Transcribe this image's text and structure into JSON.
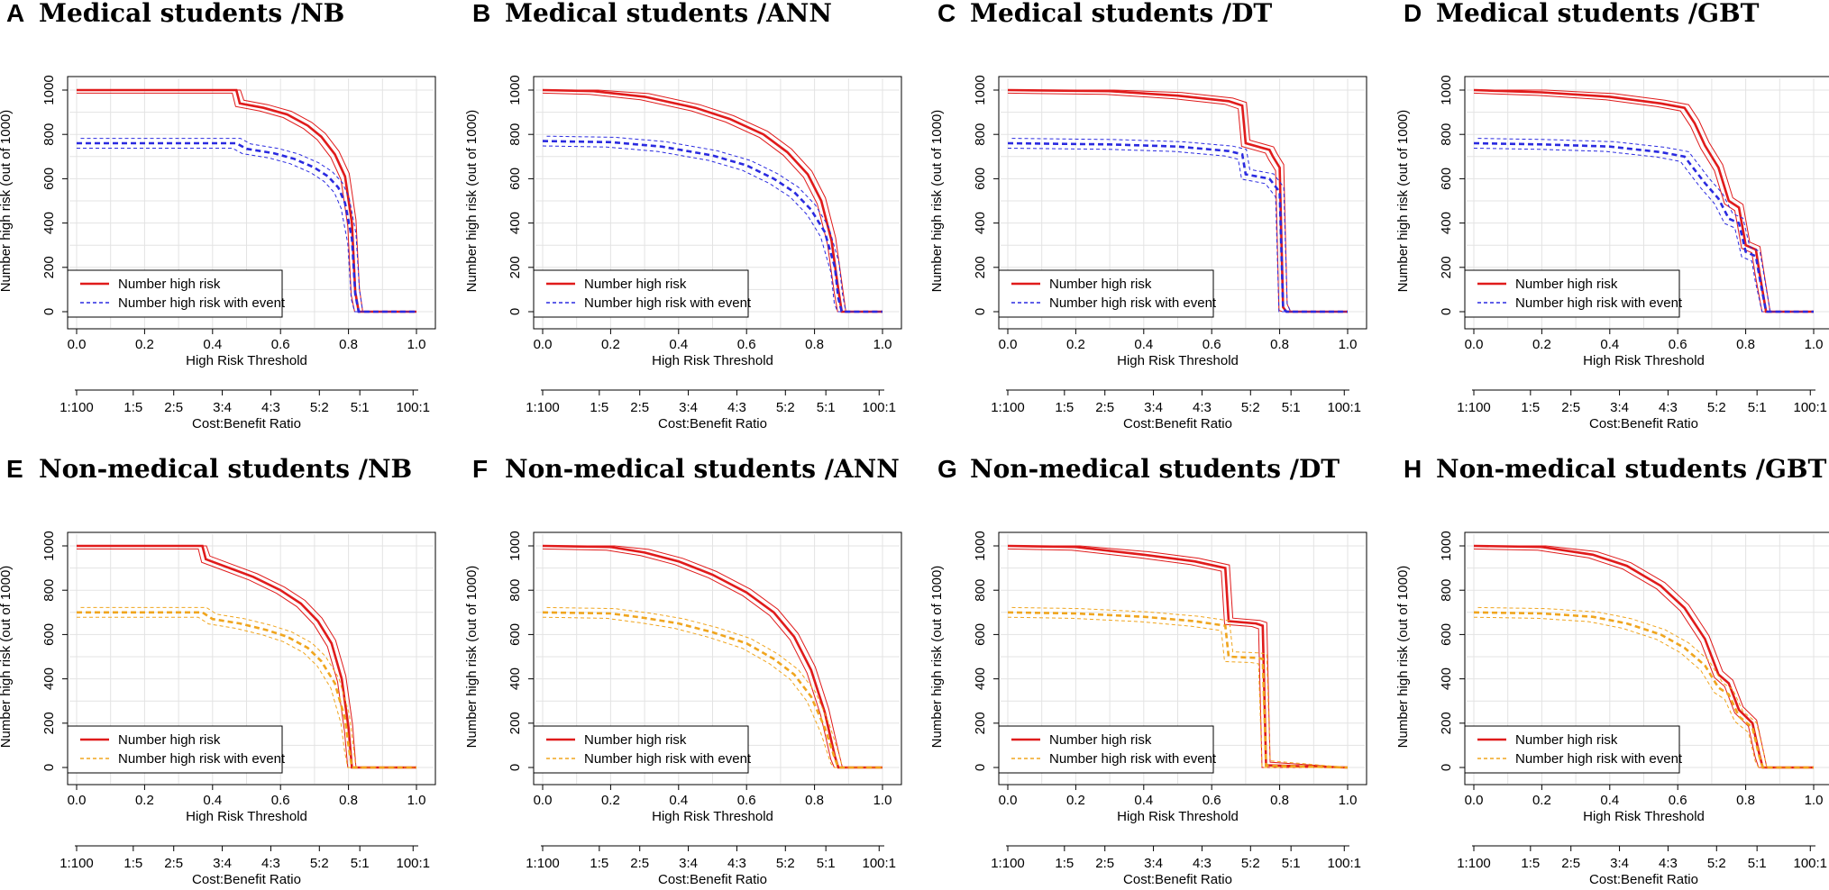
{
  "figure": {
    "legend_labels": [
      "Number high risk",
      "Number high risk with event"
    ],
    "colors": {
      "risk": "#e01b1b",
      "event_medical": "#2a2ae0",
      "event_nonmedical": "#f0a51e",
      "grid": "#e3e3e3"
    }
  },
  "chart_data": [
    {
      "type": "line",
      "letter": "A",
      "title": "Medical students /NB",
      "xlabel": "High Risk Threshold",
      "ylabel": "Number high risk (out of 1000)",
      "x2label": "Cost:Benefit Ratio",
      "xlim": [
        0,
        1
      ],
      "ylim": [
        0,
        1000
      ],
      "x_ticks": [
        "0.0",
        "0.2",
        "0.4",
        "0.6",
        "0.8",
        "1.0"
      ],
      "y_ticks": [
        "0",
        "200",
        "400",
        "600",
        "800",
        "1000"
      ],
      "cost_benefit_ticks": [
        "1:100",
        "1:5",
        "2:5",
        "3:4",
        "4:3",
        "5:2",
        "5:1",
        "100:1"
      ],
      "event_color": "#2a2ae0",
      "series": [
        {
          "name": "Number high risk",
          "line": "solid",
          "x": [
            0,
            0.47,
            0.48,
            0.55,
            0.62,
            0.68,
            0.72,
            0.76,
            0.79,
            0.81,
            0.82,
            0.83,
            1.0
          ],
          "y": [
            1000,
            1000,
            940,
            920,
            890,
            840,
            790,
            710,
            610,
            400,
            90,
            0,
            0
          ]
        },
        {
          "name": "Number high risk with event",
          "line": "dashed",
          "x": [
            0,
            0.47,
            0.5,
            0.58,
            0.64,
            0.7,
            0.74,
            0.77,
            0.79,
            0.81,
            0.82,
            0.83,
            1.0
          ],
          "y": [
            760,
            760,
            735,
            715,
            690,
            650,
            610,
            560,
            490,
            330,
            80,
            0,
            0
          ]
        }
      ]
    },
    {
      "type": "line",
      "letter": "B",
      "title": "Medical students /ANN",
      "xlabel": "High Risk Threshold",
      "ylabel": "Number high risk (out of 1000)",
      "x2label": "Cost:Benefit Ratio",
      "xlim": [
        0,
        1
      ],
      "ylim": [
        0,
        1000
      ],
      "x_ticks": [
        "0.0",
        "0.2",
        "0.4",
        "0.6",
        "0.8",
        "1.0"
      ],
      "y_ticks": [
        "0",
        "200",
        "400",
        "600",
        "800",
        "1000"
      ],
      "cost_benefit_ticks": [
        "1:100",
        "1:5",
        "2:5",
        "3:4",
        "4:3",
        "5:2",
        "5:1",
        "100:1"
      ],
      "event_color": "#2a2ae0",
      "series": [
        {
          "name": "Number high risk",
          "line": "solid",
          "x": [
            0,
            0.15,
            0.3,
            0.45,
            0.55,
            0.65,
            0.72,
            0.78,
            0.82,
            0.85,
            0.87,
            0.88,
            1.0
          ],
          "y": [
            1000,
            995,
            970,
            920,
            870,
            800,
            720,
            620,
            500,
            320,
            100,
            0,
            0
          ]
        },
        {
          "name": "Number high risk with event",
          "line": "dashed",
          "x": [
            0,
            0.2,
            0.35,
            0.5,
            0.6,
            0.68,
            0.74,
            0.79,
            0.83,
            0.86,
            0.87,
            0.88,
            1.0
          ],
          "y": [
            770,
            765,
            745,
            705,
            660,
            600,
            540,
            460,
            360,
            200,
            60,
            0,
            0
          ]
        }
      ]
    },
    {
      "type": "line",
      "letter": "C",
      "title": "Medical students /DT",
      "xlabel": "High Risk Threshold",
      "ylabel": "Number high risk (out of 1000)",
      "x2label": "Cost:Benefit Ratio",
      "xlim": [
        0,
        1
      ],
      "ylim": [
        0,
        1000
      ],
      "x_ticks": [
        "0.0",
        "0.2",
        "0.4",
        "0.6",
        "0.8",
        "1.0"
      ],
      "y_ticks": [
        "0",
        "200",
        "400",
        "600",
        "800",
        "1000"
      ],
      "cost_benefit_ticks": [
        "1:100",
        "1:5",
        "2:5",
        "3:4",
        "4:3",
        "5:2",
        "5:1",
        "100:1"
      ],
      "event_color": "#2a2ae0",
      "series": [
        {
          "name": "Number high risk",
          "line": "solid",
          "x": [
            0,
            0.3,
            0.5,
            0.65,
            0.69,
            0.7,
            0.77,
            0.78,
            0.8,
            0.81,
            0.82,
            1.0
          ],
          "y": [
            1000,
            995,
            975,
            950,
            930,
            760,
            730,
            700,
            650,
            20,
            0,
            0
          ]
        },
        {
          "name": "Number high risk with event",
          "line": "dashed",
          "x": [
            0,
            0.3,
            0.5,
            0.65,
            0.69,
            0.7,
            0.77,
            0.78,
            0.8,
            0.81,
            0.82,
            1.0
          ],
          "y": [
            760,
            755,
            745,
            725,
            710,
            620,
            600,
            580,
            540,
            15,
            0,
            0
          ]
        }
      ]
    },
    {
      "type": "line",
      "letter": "D",
      "title": "Medical students /GBT",
      "xlabel": "High Risk Threshold",
      "ylabel": "Number high risk (out of 1000)",
      "x2label": "Cost:Benefit Ratio",
      "xlim": [
        0,
        1
      ],
      "ylim": [
        0,
        1000
      ],
      "x_ticks": [
        "0.0",
        "0.2",
        "0.4",
        "0.6",
        "0.8",
        "1.0"
      ],
      "y_ticks": [
        "0",
        "200",
        "400",
        "600",
        "800",
        "1000"
      ],
      "cost_benefit_ticks": [
        "1:100",
        "1:5",
        "2:5",
        "3:4",
        "4:3",
        "5:2",
        "5:1",
        "100:1"
      ],
      "event_color": "#2a2ae0",
      "series": [
        {
          "name": "Number high risk",
          "line": "solid",
          "x": [
            0,
            0.2,
            0.4,
            0.55,
            0.62,
            0.65,
            0.68,
            0.72,
            0.75,
            0.78,
            0.8,
            0.83,
            0.84,
            0.86,
            1.0
          ],
          "y": [
            1000,
            990,
            970,
            940,
            920,
            850,
            750,
            650,
            500,
            470,
            300,
            280,
            180,
            0,
            0
          ]
        },
        {
          "name": "Number high risk with event",
          "line": "dashed",
          "x": [
            0,
            0.2,
            0.4,
            0.55,
            0.62,
            0.65,
            0.68,
            0.72,
            0.75,
            0.78,
            0.8,
            0.83,
            0.84,
            0.86,
            1.0
          ],
          "y": [
            760,
            755,
            745,
            720,
            700,
            640,
            580,
            510,
            420,
            400,
            270,
            250,
            160,
            0,
            0
          ]
        }
      ]
    },
    {
      "type": "line",
      "letter": "E",
      "title": "Non-medical students /NB",
      "xlabel": "High Risk Threshold",
      "ylabel": "Number high risk (out of 1000)",
      "x2label": "Cost:Benefit Ratio",
      "xlim": [
        0,
        1
      ],
      "ylim": [
        0,
        1000
      ],
      "x_ticks": [
        "0.0",
        "0.2",
        "0.4",
        "0.6",
        "0.8",
        "1.0"
      ],
      "y_ticks": [
        "0",
        "200",
        "400",
        "600",
        "800",
        "1000"
      ],
      "cost_benefit_ticks": [
        "1:100",
        "1:5",
        "2:5",
        "3:4",
        "4:3",
        "5:2",
        "5:1",
        "100:1"
      ],
      "event_color": "#f0a51e",
      "series": [
        {
          "name": "Number high risk",
          "line": "solid",
          "x": [
            0,
            0.37,
            0.38,
            0.45,
            0.52,
            0.6,
            0.66,
            0.71,
            0.75,
            0.78,
            0.8,
            0.81,
            1.0
          ],
          "y": [
            1000,
            1000,
            940,
            900,
            860,
            800,
            740,
            660,
            560,
            400,
            180,
            0,
            0
          ]
        },
        {
          "name": "Number high risk with event",
          "line": "dashed",
          "x": [
            0,
            0.37,
            0.4,
            0.48,
            0.56,
            0.62,
            0.68,
            0.72,
            0.76,
            0.79,
            0.8,
            0.81,
            1.0
          ],
          "y": [
            700,
            700,
            670,
            650,
            620,
            590,
            540,
            480,
            380,
            220,
            100,
            0,
            0
          ]
        }
      ]
    },
    {
      "type": "line",
      "letter": "F",
      "title": "Non-medical students /ANN",
      "xlabel": "High Risk Threshold",
      "ylabel": "Number high risk (out of 1000)",
      "x2label": "Cost:Benefit Ratio",
      "xlim": [
        0,
        1
      ],
      "ylim": [
        0,
        1000
      ],
      "x_ticks": [
        "0.0",
        "0.2",
        "0.4",
        "0.6",
        "0.8",
        "1.0"
      ],
      "y_ticks": [
        "0",
        "200",
        "400",
        "600",
        "800",
        "1000"
      ],
      "cost_benefit_ticks": [
        "1:100",
        "1:5",
        "2:5",
        "3:4",
        "4:3",
        "5:2",
        "5:1",
        "100:1"
      ],
      "event_color": "#f0a51e",
      "series": [
        {
          "name": "Number high risk",
          "line": "solid",
          "x": [
            0,
            0.2,
            0.3,
            0.4,
            0.5,
            0.6,
            0.68,
            0.74,
            0.79,
            0.83,
            0.86,
            0.87,
            1.0
          ],
          "y": [
            1000,
            995,
            970,
            930,
            870,
            790,
            700,
            590,
            440,
            250,
            50,
            0,
            0
          ]
        },
        {
          "name": "Number high risk with event",
          "line": "dashed",
          "x": [
            0,
            0.2,
            0.3,
            0.4,
            0.5,
            0.6,
            0.68,
            0.74,
            0.79,
            0.83,
            0.86,
            0.87,
            1.0
          ],
          "y": [
            700,
            695,
            675,
            650,
            610,
            560,
            490,
            420,
            320,
            180,
            40,
            0,
            0
          ]
        }
      ]
    },
    {
      "type": "line",
      "letter": "G",
      "title": "Non-medical students /DT",
      "xlabel": "High Risk Threshold",
      "ylabel": "Number high risk (out of 1000)",
      "x2label": "Cost:Benefit Ratio",
      "xlim": [
        0,
        1
      ],
      "ylim": [
        0,
        1000
      ],
      "x_ticks": [
        "0.0",
        "0.2",
        "0.4",
        "0.6",
        "0.8",
        "1.0"
      ],
      "y_ticks": [
        "0",
        "200",
        "400",
        "600",
        "800",
        "1000"
      ],
      "cost_benefit_ticks": [
        "1:100",
        "1:5",
        "2:5",
        "3:4",
        "4:3",
        "5:2",
        "5:1",
        "100:1"
      ],
      "event_color": "#f0a51e",
      "series": [
        {
          "name": "Number high risk",
          "line": "solid",
          "x": [
            0,
            0.2,
            0.4,
            0.55,
            0.64,
            0.65,
            0.73,
            0.75,
            0.76,
            1.0
          ],
          "y": [
            1000,
            995,
            960,
            930,
            900,
            660,
            650,
            640,
            10,
            0
          ]
        },
        {
          "name": "Number high risk with event",
          "line": "dashed",
          "x": [
            0,
            0.2,
            0.4,
            0.55,
            0.64,
            0.65,
            0.73,
            0.75,
            0.76,
            1.0
          ],
          "y": [
            700,
            695,
            680,
            660,
            640,
            500,
            495,
            490,
            8,
            0
          ]
        }
      ]
    },
    {
      "type": "line",
      "letter": "H",
      "title": "Non-medical students /GBT",
      "xlabel": "High Risk Threshold",
      "ylabel": "Number high risk (out of 1000)",
      "x2label": "Cost:Benefit Ratio",
      "xlim": [
        0,
        1
      ],
      "ylim": [
        0,
        1000
      ],
      "x_ticks": [
        "0.0",
        "0.2",
        "0.4",
        "0.6",
        "0.8",
        "1.0"
      ],
      "y_ticks": [
        "0",
        "200",
        "400",
        "600",
        "800",
        "1000"
      ],
      "cost_benefit_ticks": [
        "1:100",
        "1:5",
        "2:5",
        "3:4",
        "4:3",
        "5:2",
        "5:1",
        "100:1"
      ],
      "event_color": "#f0a51e",
      "series": [
        {
          "name": "Number high risk",
          "line": "solid",
          "x": [
            0,
            0.2,
            0.35,
            0.45,
            0.55,
            0.62,
            0.68,
            0.72,
            0.75,
            0.78,
            0.82,
            0.84,
            0.85,
            1.0
          ],
          "y": [
            1000,
            995,
            960,
            910,
            820,
            720,
            580,
            420,
            380,
            260,
            200,
            60,
            0,
            0
          ]
        },
        {
          "name": "Number high risk with event",
          "line": "dashed",
          "x": [
            0,
            0.2,
            0.35,
            0.45,
            0.55,
            0.62,
            0.68,
            0.72,
            0.75,
            0.78,
            0.82,
            0.84,
            0.85,
            1.0
          ],
          "y": [
            700,
            695,
            680,
            650,
            600,
            540,
            460,
            360,
            330,
            230,
            180,
            50,
            0,
            0
          ]
        }
      ]
    }
  ]
}
